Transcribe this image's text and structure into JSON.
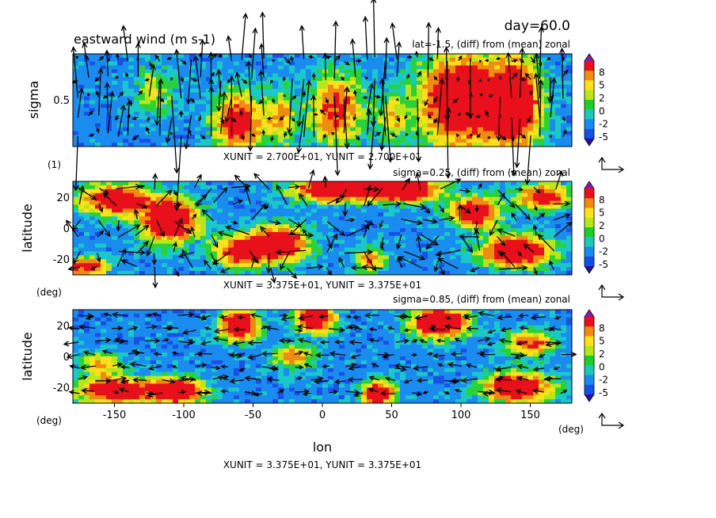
{
  "header": {
    "day_label": "day=60.0",
    "variable_title": "eastward wind (m s-1)"
  },
  "colorbar": {
    "labels": [
      "8",
      "5",
      "2",
      "0",
      "-2",
      "-5"
    ],
    "colors": [
      "#8a1aa0",
      "#e8101a",
      "#f08a10",
      "#ffe21a",
      "#b8e61a",
      "#1ad028",
      "#1ac8b8",
      "#1a8cf0",
      "#1450e6",
      "#2a10a0"
    ]
  },
  "panels": [
    {
      "id": "top",
      "subtitle": "lat=-1.5, (diff) from (mean) zonal",
      "ylabel": "sigma",
      "yunit": "(1)",
      "yticks": [
        "0.5"
      ],
      "xticks": [],
      "unit_note": "XUNIT = 2.700E+01, YUNIT = 2.700E+01"
    },
    {
      "id": "middle",
      "subtitle": "sigma=0.25, (diff) from (mean) zonal",
      "ylabel": "latitude",
      "yunit": "(deg)",
      "yticks": [
        "20",
        "0",
        "-20"
      ],
      "xticks": [],
      "unit_note": "XUNIT = 3.375E+01, YUNIT = 3.375E+01"
    },
    {
      "id": "bottom",
      "subtitle": "sigma=0.85, (diff) from (mean) zonal",
      "ylabel": "latitude",
      "yunit": "(deg)",
      "yticks": [
        "20",
        "0",
        "-20"
      ],
      "xticks": [
        "-150",
        "-100",
        "-50",
        "0",
        "50",
        "100",
        "150"
      ],
      "xunit": "(deg)",
      "xlabel": "lon",
      "unit_note": "XUNIT = 3.375E+01, YUNIT = 3.375E+01"
    }
  ],
  "chart_data": [
    {
      "type": "heatmap",
      "title": "eastward wind (m s-1)",
      "subtitle": "lat=-1.5, (diff) from (mean) zonal",
      "xlabel": "",
      "ylabel": "sigma",
      "xlim": [
        -180,
        180
      ],
      "ylim": [
        1.0,
        0.0
      ],
      "color_levels": [
        -5,
        -2,
        0,
        2,
        5,
        8
      ],
      "overlay": "vector wind arrows",
      "warm_regions": [
        [
          -85,
          -50
        ],
        [
          -10,
          20
        ],
        [
          70,
          150
        ]
      ]
    },
    {
      "type": "heatmap",
      "subtitle": "sigma=0.25, (diff) from (mean) zonal",
      "xlabel": "",
      "ylabel": "latitude",
      "xlim": [
        -180,
        180
      ],
      "ylim": [
        -30,
        30
      ],
      "color_levels": [
        -5,
        -2,
        0,
        2,
        5,
        8
      ],
      "overlay": "vector wind arrows"
    },
    {
      "type": "heatmap",
      "subtitle": "sigma=0.85, (diff) from (mean) zonal",
      "xlabel": "lon",
      "ylabel": "latitude",
      "xlim": [
        -180,
        180
      ],
      "ylim": [
        -30,
        30
      ],
      "xticks": [
        -150,
        -100,
        -50,
        0,
        50,
        100,
        150
      ],
      "yticks": [
        -20,
        0,
        20
      ],
      "color_levels": [
        -5,
        -2,
        0,
        2,
        5,
        8
      ],
      "overlay": "vector wind arrows"
    }
  ]
}
